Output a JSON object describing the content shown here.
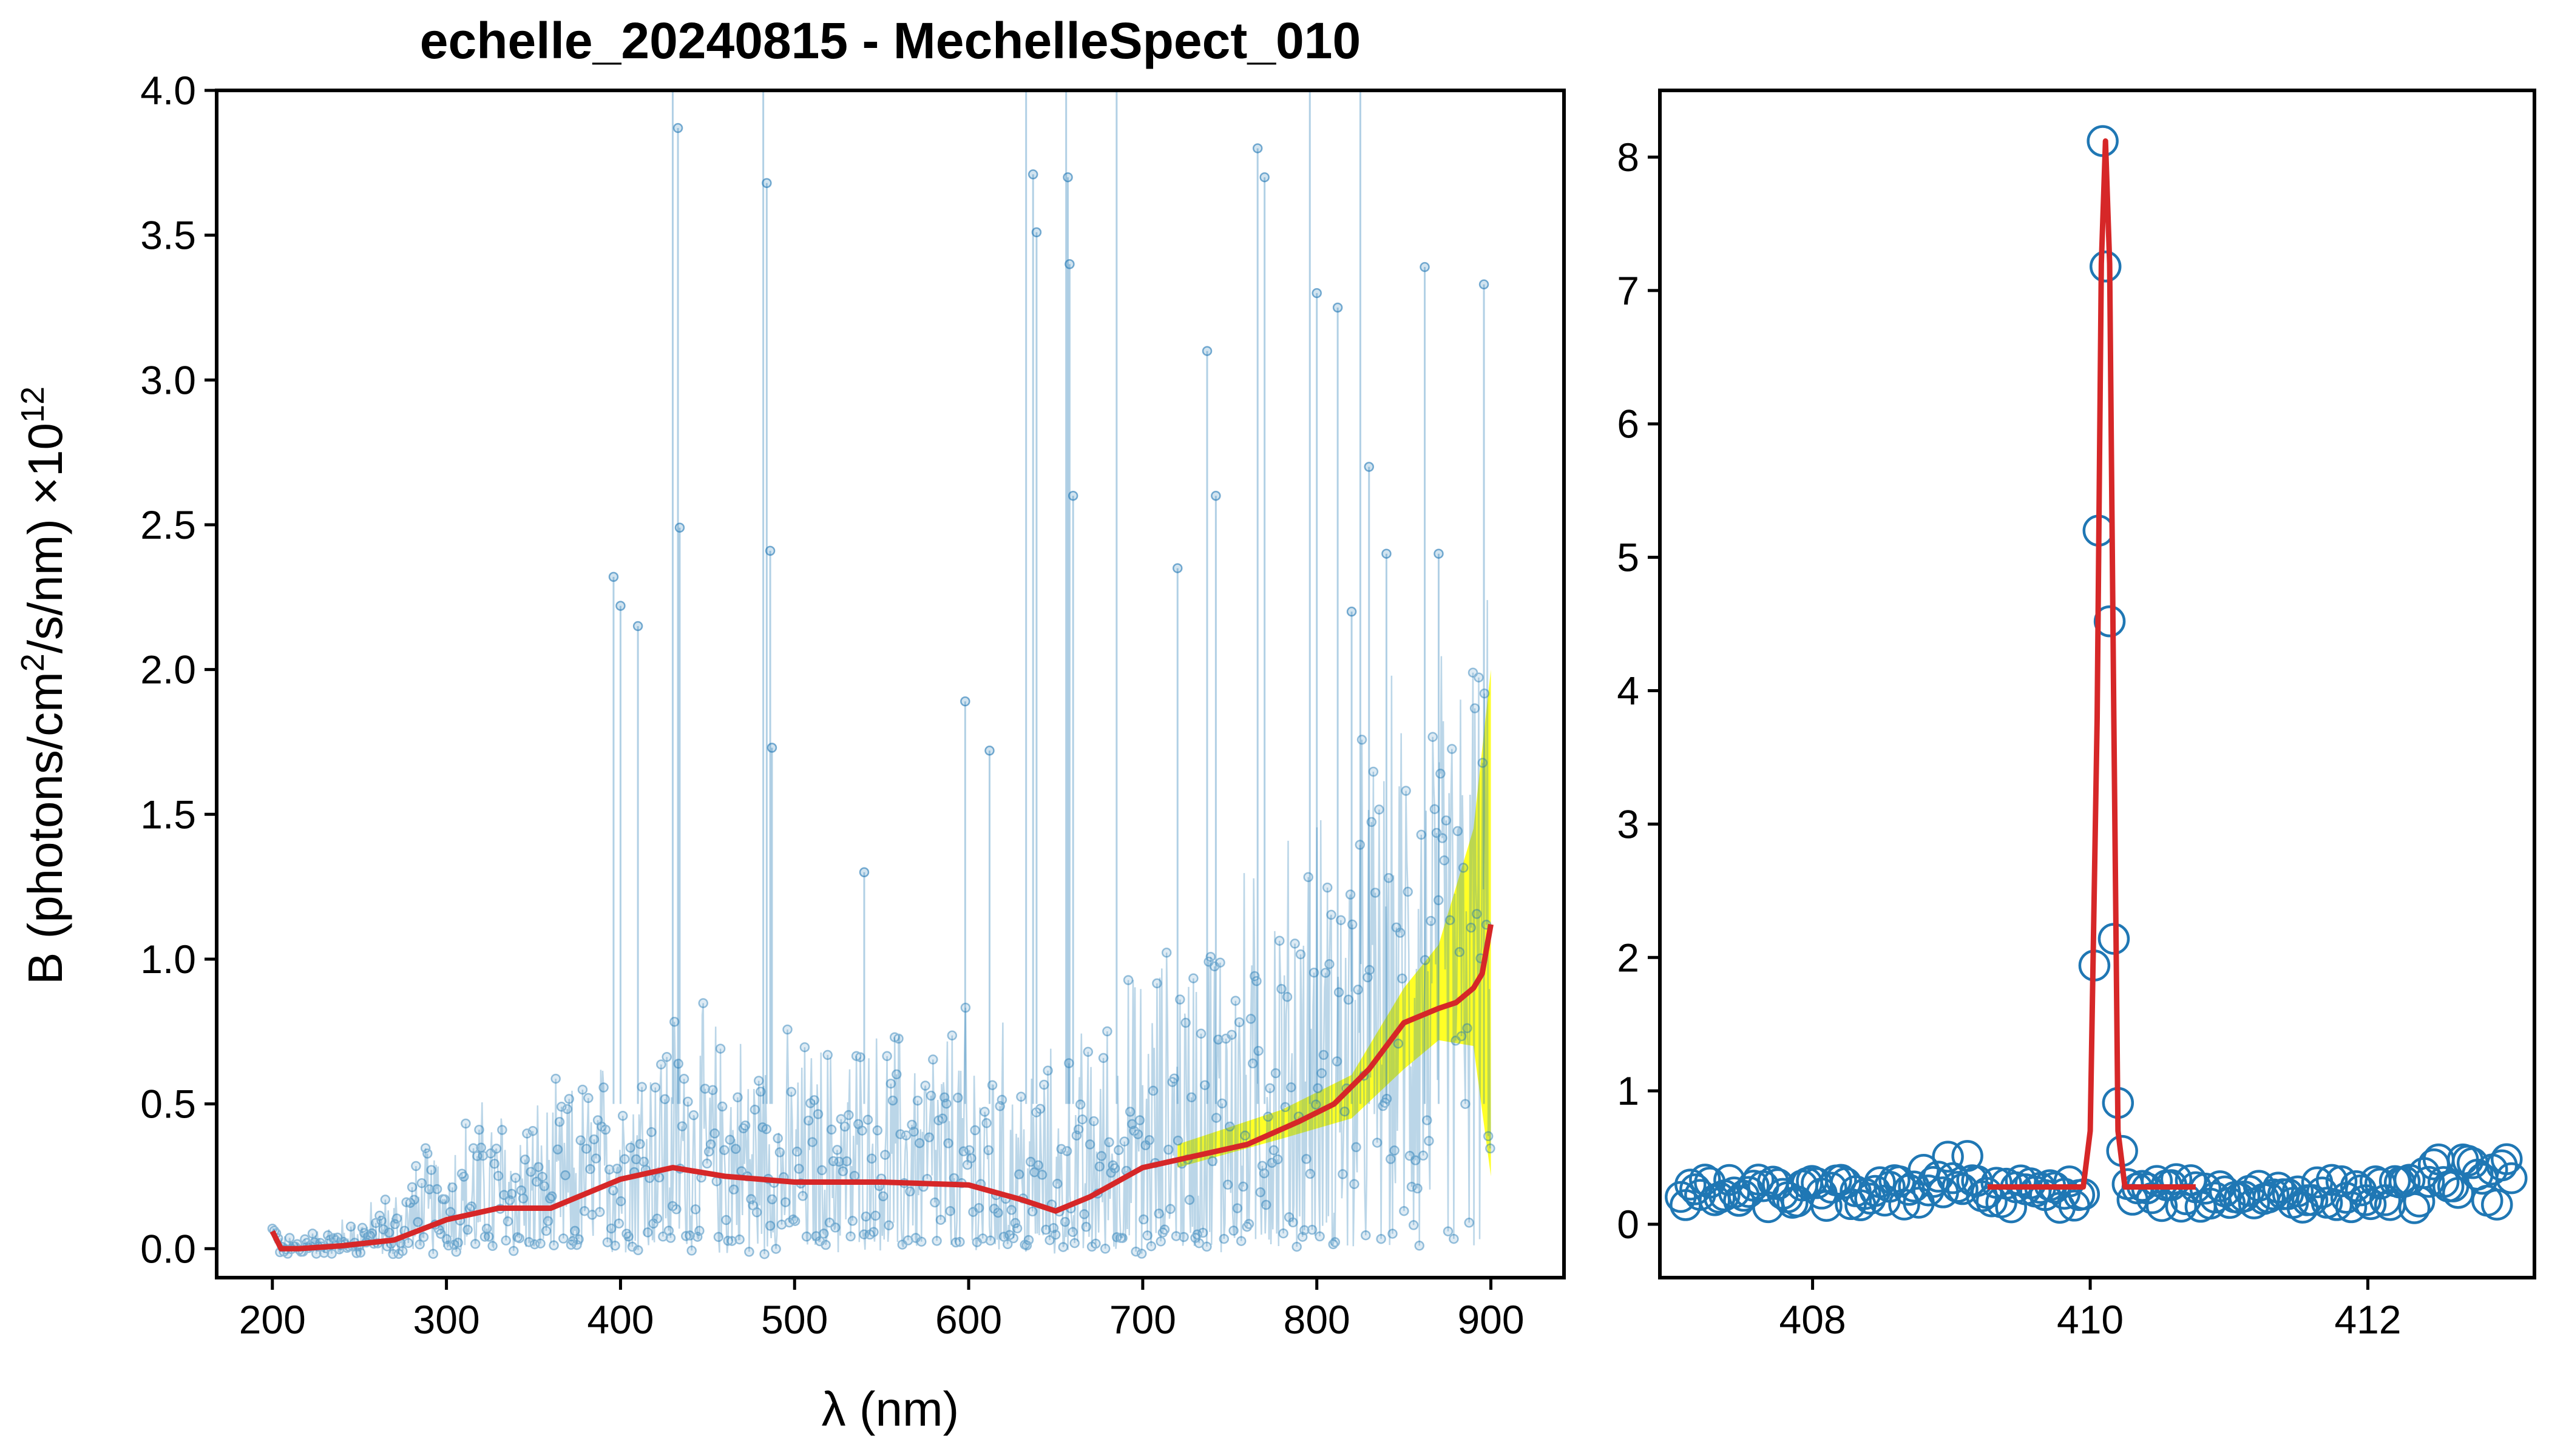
{
  "chart_data": [
    {
      "type": "scatter",
      "title": "echelle_20240815 - MechelleSpect_010",
      "xlabel": "λ (nm)",
      "ylabel_main": "B (photons/cm",
      "ylabel_sup1": "2",
      "ylabel_rest": "/s/nm) ×10",
      "ylabel_sup2": "12",
      "xlim": [
        168,
        942
      ],
      "ylim": [
        -0.1,
        4.0
      ],
      "xticks": [
        200,
        300,
        400,
        500,
        600,
        700,
        800,
        900
      ],
      "yticks": [
        0.0,
        0.5,
        1.0,
        1.5,
        2.0,
        2.5,
        3.0,
        3.5,
        4.0
      ],
      "xtick_labels": [
        "200",
        "300",
        "400",
        "500",
        "600",
        "700",
        "800",
        "900"
      ],
      "ytick_labels": [
        "0.0",
        "0.5",
        "1.0",
        "1.5",
        "2.0",
        "2.5",
        "3.0",
        "3.5",
        "4.0"
      ],
      "colors": {
        "data": "#1f77b4",
        "fit": "#d62728",
        "uncertainty": "#ffff00"
      },
      "series": [
        {
          "kind": "data-points",
          "envelope_x": [
            200,
            230,
            260,
            300,
            330,
            350,
            380,
            400,
            430,
            460,
            500,
            550,
            600,
            650,
            700,
            750,
            800,
            850,
            900
          ],
          "envelope_y": [
            0.05,
            0.1,
            0.2,
            0.45,
            0.55,
            0.5,
            0.55,
            0.65,
            0.75,
            0.7,
            0.65,
            0.7,
            0.8,
            0.7,
            0.95,
            1.2,
            1.4,
            1.55,
            1.8
          ],
          "spikes": [
            [
              396,
              2.32
            ],
            [
              400,
              2.22
            ],
            [
              410,
              2.15
            ],
            [
              430,
              4.0
            ],
            [
              433,
              3.87
            ],
            [
              434,
              2.49
            ],
            [
              482,
              4.0
            ],
            [
              484,
              3.68
            ],
            [
              486,
              2.41
            ],
            [
              487,
              1.73
            ],
            [
              540,
              1.3
            ],
            [
              598,
              1.89
            ],
            [
              612,
              1.72
            ],
            [
              633,
              4.0
            ],
            [
              637,
              3.71
            ],
            [
              639,
              3.51
            ],
            [
              656,
              4.0
            ],
            [
              657,
              3.7
            ],
            [
              658,
              3.4
            ],
            [
              660,
              2.6
            ],
            [
              685,
              4.0
            ],
            [
              720,
              2.35
            ],
            [
              737,
              3.1
            ],
            [
              742,
              2.6
            ],
            [
              766,
              3.8
            ],
            [
              770,
              3.7
            ],
            [
              796,
              4.0
            ],
            [
              800,
              3.3
            ],
            [
              812,
              3.25
            ],
            [
              820,
              2.2
            ],
            [
              825,
              4.0
            ],
            [
              830,
              2.7
            ],
            [
              840,
              2.4
            ],
            [
              862,
              3.39
            ],
            [
              870,
              2.4
            ],
            [
              896,
              3.33
            ]
          ]
        },
        {
          "kind": "fit",
          "x": [
            200,
            205,
            215,
            240,
            270,
            300,
            330,
            360,
            400,
            430,
            460,
            500,
            550,
            600,
            630,
            650,
            670,
            700,
            730,
            760,
            790,
            810,
            830,
            850,
            870,
            880,
            890,
            895,
            900
          ],
          "y": [
            0.06,
            0.0,
            0.0,
            0.01,
            0.03,
            0.1,
            0.14,
            0.14,
            0.24,
            0.28,
            0.25,
            0.23,
            0.23,
            0.22,
            0.17,
            0.13,
            0.18,
            0.28,
            0.32,
            0.36,
            0.44,
            0.5,
            0.62,
            0.78,
            0.83,
            0.85,
            0.9,
            0.95,
            1.12
          ]
        },
        {
          "kind": "uncertainty-band",
          "x": [
            720,
            780,
            820,
            850,
            870,
            890,
            900
          ],
          "y_low": [
            0.28,
            0.38,
            0.45,
            0.62,
            0.72,
            0.7,
            0.25
          ],
          "y_high": [
            0.36,
            0.48,
            0.6,
            0.9,
            1.05,
            1.45,
            2.0
          ]
        }
      ]
    },
    {
      "type": "scatter",
      "xlim": [
        406.9,
        413.2
      ],
      "ylim": [
        -0.4,
        8.5
      ],
      "xticks": [
        408,
        410,
        412
      ],
      "yticks": [
        0,
        1,
        2,
        3,
        4,
        5,
        6,
        7,
        8
      ],
      "xtick_labels": [
        "408",
        "410",
        "412"
      ],
      "ytick_labels": [
        "0",
        "1",
        "2",
        "3",
        "4",
        "5",
        "6",
        "7",
        "8"
      ],
      "colors": {
        "data": "#1f77b4",
        "fit": "#d62728"
      },
      "series": [
        {
          "kind": "data-points",
          "peak_points": [
            [
              410.03,
              1.94
            ],
            [
              410.06,
              5.2
            ],
            [
              410.09,
              8.12
            ],
            [
              410.11,
              7.18
            ],
            [
              410.14,
              4.52
            ],
            [
              410.17,
              2.14
            ],
            [
              410.2,
              0.91
            ],
            [
              410.23,
              0.55
            ]
          ]
        },
        {
          "kind": "fit",
          "x": [
            409.26,
            409.95,
            410.0,
            410.05,
            410.08,
            410.11,
            410.14,
            410.17,
            410.2,
            410.25,
            410.76
          ],
          "y": [
            0.28,
            0.28,
            0.7,
            3.8,
            7.2,
            8.12,
            7.2,
            3.8,
            0.7,
            0.28,
            0.28
          ]
        }
      ]
    }
  ]
}
